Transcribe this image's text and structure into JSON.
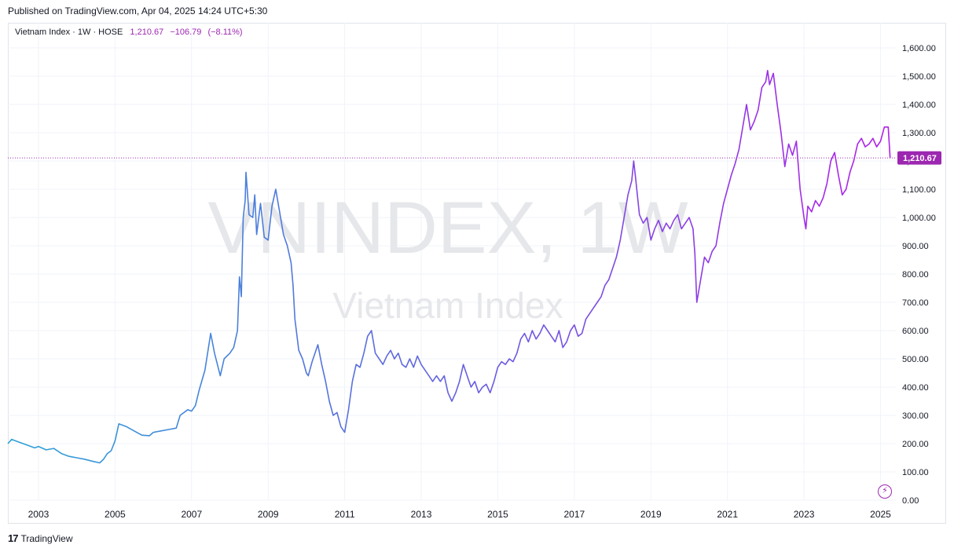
{
  "published": "Published on TradingView.com, Apr 04, 2025 14:24 UTC+5:30",
  "legend": {
    "symbol": "Vietnam Index · 1W · HOSE",
    "last": "1,210.67",
    "change": "−106.79",
    "change_pct": "(−8.11%)"
  },
  "watermark": {
    "ticker": "VNINDEX, 1W",
    "name": "Vietnam Index"
  },
  "price_label": "1,210.67",
  "footer": {
    "brand": "TradingView"
  },
  "colors": {
    "line_start": "#2ea2d6",
    "line_mid": "#6a5ce0",
    "line_end": "#b020e8",
    "last_label_bg": "#9c27b0"
  },
  "icons": {
    "footer": "tradingview-logo-icon",
    "bolt": "lightning-icon"
  },
  "chart_data": {
    "type": "line",
    "ylim": [
      0,
      1650
    ],
    "y_ticks": [
      "1,600.00",
      "1,500.00",
      "1,400.00",
      "1,300.00",
      "1,200.00",
      "1,100.00",
      "1,000.00",
      "900.00",
      "800.00",
      "700.00",
      "600.00",
      "500.00",
      "400.00",
      "300.00",
      "200.00",
      "100.00",
      "0.00"
    ],
    "y_tick_values": [
      1600,
      1500,
      1400,
      1300,
      1200,
      1100,
      1000,
      900,
      800,
      700,
      600,
      500,
      400,
      300,
      200,
      100,
      0
    ],
    "x_ticks": [
      "2003",
      "2005",
      "2007",
      "2009",
      "2011",
      "2013",
      "2015",
      "2017",
      "2019",
      "2021",
      "2023",
      "2025"
    ],
    "x_tick_years": [
      2003,
      2005,
      2007,
      2009,
      2011,
      2013,
      2015,
      2017,
      2019,
      2021,
      2023,
      2025
    ],
    "xlim": [
      2002.2,
      2025.4
    ],
    "last_value": 1210.67,
    "series": [
      {
        "points": [
          [
            2002.2,
            200
          ],
          [
            2002.3,
            215
          ],
          [
            2002.5,
            205
          ],
          [
            2002.7,
            195
          ],
          [
            2002.9,
            185
          ],
          [
            2003.0,
            190
          ],
          [
            2003.2,
            178
          ],
          [
            2003.4,
            183
          ],
          [
            2003.6,
            165
          ],
          [
            2003.8,
            155
          ],
          [
            2004.0,
            150
          ],
          [
            2004.2,
            145
          ],
          [
            2004.4,
            138
          ],
          [
            2004.6,
            132
          ],
          [
            2004.7,
            145
          ],
          [
            2004.8,
            165
          ],
          [
            2004.9,
            175
          ],
          [
            2005.0,
            210
          ],
          [
            2005.1,
            270
          ],
          [
            2005.3,
            260
          ],
          [
            2005.5,
            245
          ],
          [
            2005.7,
            230
          ],
          [
            2005.9,
            228
          ],
          [
            2006.0,
            240
          ],
          [
            2006.2,
            245
          ],
          [
            2006.4,
            250
          ],
          [
            2006.6,
            255
          ],
          [
            2006.7,
            300
          ],
          [
            2006.9,
            320
          ],
          [
            2007.0,
            315
          ],
          [
            2007.1,
            335
          ],
          [
            2007.2,
            390
          ],
          [
            2007.35,
            460
          ],
          [
            2007.5,
            590
          ],
          [
            2007.6,
            520
          ],
          [
            2007.75,
            440
          ],
          [
            2007.85,
            500
          ],
          [
            2008.0,
            520
          ],
          [
            2008.1,
            540
          ],
          [
            2008.2,
            600
          ],
          [
            2008.25,
            790
          ],
          [
            2008.3,
            720
          ],
          [
            2008.35,
            1000
          ],
          [
            2008.4,
            1060
          ],
          [
            2008.42,
            1160
          ],
          [
            2008.5,
            1010
          ],
          [
            2008.6,
            1000
          ],
          [
            2008.65,
            1080
          ],
          [
            2008.7,
            940
          ],
          [
            2008.8,
            1050
          ],
          [
            2008.9,
            930
          ],
          [
            2009.0,
            920
          ],
          [
            2009.1,
            1040
          ],
          [
            2009.2,
            1100
          ],
          [
            2009.3,
            1020
          ],
          [
            2009.4,
            940
          ],
          [
            2009.5,
            900
          ],
          [
            2009.6,
            840
          ],
          [
            2009.65,
            760
          ],
          [
            2009.7,
            640
          ],
          [
            2009.8,
            530
          ],
          [
            2009.9,
            500
          ],
          [
            2010.0,
            450
          ],
          [
            2010.05,
            440
          ],
          [
            2010.15,
            490
          ],
          [
            2010.3,
            550
          ],
          [
            2010.4,
            480
          ],
          [
            2010.5,
            420
          ],
          [
            2010.6,
            350
          ],
          [
            2010.7,
            300
          ],
          [
            2010.8,
            310
          ],
          [
            2010.9,
            260
          ],
          [
            2011.0,
            240
          ],
          [
            2011.1,
            320
          ],
          [
            2011.2,
            420
          ],
          [
            2011.3,
            480
          ],
          [
            2011.4,
            470
          ],
          [
            2011.5,
            520
          ],
          [
            2011.6,
            580
          ],
          [
            2011.7,
            600
          ],
          [
            2011.8,
            520
          ],
          [
            2011.9,
            500
          ],
          [
            2012.0,
            480
          ],
          [
            2012.1,
            510
          ],
          [
            2012.2,
            530
          ],
          [
            2012.3,
            500
          ],
          [
            2012.4,
            520
          ],
          [
            2012.5,
            480
          ],
          [
            2012.6,
            470
          ],
          [
            2012.7,
            500
          ],
          [
            2012.8,
            470
          ],
          [
            2012.9,
            510
          ],
          [
            2013.0,
            480
          ],
          [
            2013.1,
            460
          ],
          [
            2013.2,
            440
          ],
          [
            2013.3,
            420
          ],
          [
            2013.4,
            440
          ],
          [
            2013.5,
            420
          ],
          [
            2013.6,
            440
          ],
          [
            2013.7,
            380
          ],
          [
            2013.8,
            350
          ],
          [
            2013.9,
            380
          ],
          [
            2014.0,
            420
          ],
          [
            2014.1,
            480
          ],
          [
            2014.2,
            440
          ],
          [
            2014.3,
            400
          ],
          [
            2014.4,
            420
          ],
          [
            2014.5,
            380
          ],
          [
            2014.6,
            400
          ],
          [
            2014.7,
            410
          ],
          [
            2014.8,
            380
          ],
          [
            2014.9,
            420
          ],
          [
            2015.0,
            470
          ],
          [
            2015.1,
            490
          ],
          [
            2015.2,
            480
          ],
          [
            2015.3,
            500
          ],
          [
            2015.4,
            490
          ],
          [
            2015.5,
            520
          ],
          [
            2015.6,
            570
          ],
          [
            2015.7,
            590
          ],
          [
            2015.8,
            560
          ],
          [
            2015.9,
            600
          ],
          [
            2016.0,
            570
          ],
          [
            2016.1,
            590
          ],
          [
            2016.2,
            620
          ],
          [
            2016.3,
            600
          ],
          [
            2016.4,
            580
          ],
          [
            2016.5,
            560
          ],
          [
            2016.6,
            600
          ],
          [
            2016.7,
            540
          ],
          [
            2016.8,
            560
          ],
          [
            2016.9,
            600
          ],
          [
            2017.0,
            620
          ],
          [
            2017.1,
            580
          ],
          [
            2017.2,
            590
          ],
          [
            2017.3,
            640
          ],
          [
            2017.4,
            660
          ],
          [
            2017.5,
            680
          ],
          [
            2017.6,
            700
          ],
          [
            2017.7,
            720
          ],
          [
            2017.8,
            760
          ],
          [
            2017.9,
            780
          ],
          [
            2018.0,
            820
          ],
          [
            2018.1,
            860
          ],
          [
            2018.2,
            920
          ],
          [
            2018.3,
            1000
          ],
          [
            2018.4,
            1080
          ],
          [
            2018.5,
            1130
          ],
          [
            2018.55,
            1200
          ],
          [
            2018.6,
            1140
          ],
          [
            2018.7,
            1010
          ],
          [
            2018.8,
            980
          ],
          [
            2018.9,
            1000
          ],
          [
            2019.0,
            920
          ],
          [
            2019.1,
            960
          ],
          [
            2019.2,
            990
          ],
          [
            2019.3,
            950
          ],
          [
            2019.4,
            980
          ],
          [
            2019.5,
            960
          ],
          [
            2019.6,
            990
          ],
          [
            2019.7,
            1010
          ],
          [
            2019.8,
            960
          ],
          [
            2019.9,
            980
          ],
          [
            2020.0,
            1000
          ],
          [
            2020.1,
            960
          ],
          [
            2020.15,
            870
          ],
          [
            2020.2,
            700
          ],
          [
            2020.3,
            780
          ],
          [
            2020.4,
            860
          ],
          [
            2020.5,
            840
          ],
          [
            2020.6,
            880
          ],
          [
            2020.7,
            900
          ],
          [
            2020.8,
            980
          ],
          [
            2020.9,
            1050
          ],
          [
            2021.0,
            1100
          ],
          [
            2021.1,
            1150
          ],
          [
            2021.2,
            1190
          ],
          [
            2021.3,
            1240
          ],
          [
            2021.4,
            1320
          ],
          [
            2021.5,
            1400
          ],
          [
            2021.6,
            1310
          ],
          [
            2021.7,
            1340
          ],
          [
            2021.8,
            1380
          ],
          [
            2021.9,
            1460
          ],
          [
            2022.0,
            1480
          ],
          [
            2022.05,
            1520
          ],
          [
            2022.1,
            1470
          ],
          [
            2022.2,
            1510
          ],
          [
            2022.3,
            1400
          ],
          [
            2022.4,
            1300
          ],
          [
            2022.5,
            1180
          ],
          [
            2022.6,
            1260
          ],
          [
            2022.7,
            1220
          ],
          [
            2022.8,
            1270
          ],
          [
            2022.9,
            1100
          ],
          [
            2023.0,
            1000
          ],
          [
            2023.05,
            960
          ],
          [
            2023.1,
            1040
          ],
          [
            2023.2,
            1020
          ],
          [
            2023.3,
            1060
          ],
          [
            2023.4,
            1040
          ],
          [
            2023.5,
            1070
          ],
          [
            2023.6,
            1120
          ],
          [
            2023.7,
            1200
          ],
          [
            2023.8,
            1230
          ],
          [
            2023.9,
            1150
          ],
          [
            2024.0,
            1080
          ],
          [
            2024.1,
            1100
          ],
          [
            2024.2,
            1160
          ],
          [
            2024.3,
            1200
          ],
          [
            2024.4,
            1260
          ],
          [
            2024.5,
            1280
          ],
          [
            2024.6,
            1250
          ],
          [
            2024.7,
            1260
          ],
          [
            2024.8,
            1280
          ],
          [
            2024.9,
            1250
          ],
          [
            2025.0,
            1270
          ],
          [
            2025.1,
            1320
          ],
          [
            2025.2,
            1320
          ],
          [
            2025.25,
            1210.67
          ]
        ]
      }
    ]
  }
}
